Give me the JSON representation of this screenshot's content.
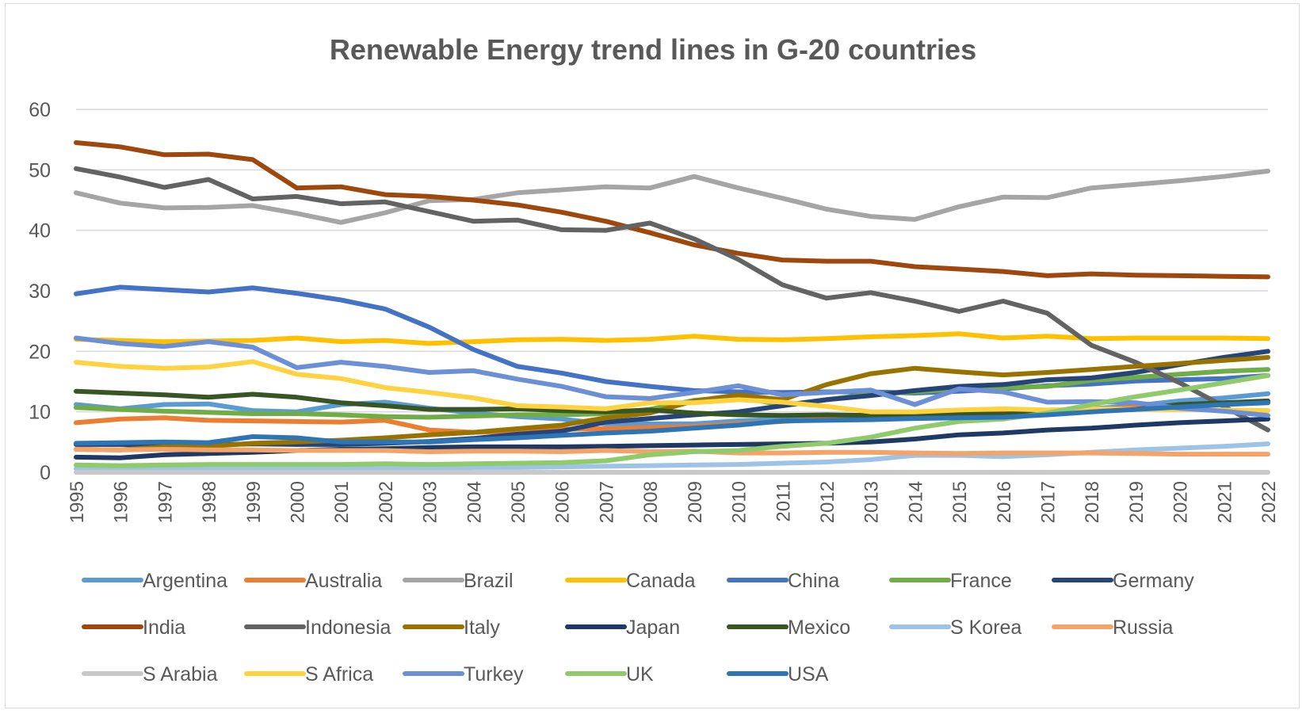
{
  "chart_data": {
    "type": "line",
    "title": "Renewable Energy trend lines in G-20 countries",
    "xlabel": "",
    "ylabel": "",
    "ylim": [
      0,
      60
    ],
    "yticks": [
      0,
      10,
      20,
      30,
      40,
      50,
      60
    ],
    "grid": true,
    "legend_position": "bottom",
    "categories": [
      "1995",
      "1996",
      "1997",
      "1998",
      "1999",
      "2000",
      "2001",
      "2002",
      "2003",
      "2004",
      "2005",
      "2006",
      "2007",
      "2008",
      "2009",
      "2010",
      "2011",
      "2012",
      "2013",
      "2014",
      "2015",
      "2016",
      "2017",
      "2018",
      "2019",
      "2020",
      "2021",
      "2022"
    ],
    "series": [
      {
        "name": "Argentina",
        "color": "#5B9BD5",
        "values": [
          11.2,
          10.5,
          11.2,
          11.3,
          10.2,
          10.0,
          11.2,
          11.6,
          10.6,
          9.8,
          9.2,
          8.8,
          8.0,
          8.0,
          8.0,
          8.5,
          8.8,
          9.2,
          9.5,
          9.5,
          9.8,
          10.0,
          10.2,
          10.5,
          11.0,
          11.8,
          12.3,
          13.0
        ]
      },
      {
        "name": "Australia",
        "color": "#ED7D31",
        "values": [
          8.2,
          8.8,
          9.0,
          8.6,
          8.5,
          8.4,
          8.3,
          8.6,
          7.0,
          6.6,
          6.8,
          7.1,
          7.2,
          7.4,
          7.6,
          8.0,
          8.4,
          8.8,
          9.0,
          9.2,
          9.5,
          9.8,
          10.0,
          10.3,
          10.8,
          11.0,
          11.2,
          11.6
        ]
      },
      {
        "name": "Brazil",
        "color": "#A5A5A5",
        "values": [
          46.2,
          44.5,
          43.7,
          43.8,
          44.1,
          42.8,
          41.3,
          42.9,
          44.9,
          45.1,
          46.2,
          46.7,
          47.2,
          47.0,
          48.9,
          47.0,
          45.3,
          43.5,
          42.3,
          41.8,
          43.9,
          45.5,
          45.4,
          47.0,
          47.6,
          48.2,
          48.9,
          49.8
        ]
      },
      {
        "name": "Canada",
        "color": "#FFC000",
        "values": [
          22.0,
          21.8,
          21.6,
          21.7,
          21.8,
          22.2,
          21.6,
          21.8,
          21.3,
          21.6,
          21.9,
          22.0,
          21.8,
          22.0,
          22.5,
          22.0,
          21.9,
          22.1,
          22.4,
          22.6,
          22.9,
          22.2,
          22.5,
          22.1,
          22.2,
          22.2,
          22.2,
          22.1
        ]
      },
      {
        "name": "China",
        "color": "#4472C4",
        "values": [
          29.5,
          30.6,
          30.2,
          29.8,
          30.5,
          29.6,
          28.5,
          27.0,
          24.0,
          20.3,
          17.5,
          16.4,
          15.0,
          14.2,
          13.5,
          13.3,
          13.2,
          13.3,
          13.3,
          13.1,
          13.4,
          13.8,
          14.3,
          14.6,
          15.1,
          15.3,
          15.5,
          16.0
        ]
      },
      {
        "name": "France",
        "color": "#70AD47",
        "values": [
          10.7,
          10.4,
          10.1,
          9.9,
          9.7,
          9.7,
          9.5,
          9.2,
          9.1,
          9.3,
          9.5,
          9.5,
          9.7,
          10.4,
          11.9,
          12.5,
          11.1,
          12.0,
          12.9,
          13.3,
          13.8,
          14.0,
          14.2,
          15.2,
          15.7,
          16.2,
          16.7,
          17.0
        ]
      },
      {
        "name": "Germany",
        "color": "#264478",
        "values": [
          4.6,
          4.6,
          4.5,
          4.5,
          4.7,
          4.6,
          4.6,
          4.8,
          5.1,
          5.6,
          6.3,
          6.8,
          8.3,
          8.9,
          9.5,
          10.0,
          11.0,
          12.0,
          12.7,
          13.5,
          14.2,
          14.5,
          15.3,
          15.6,
          16.5,
          17.8,
          19.0,
          20.0
        ]
      },
      {
        "name": "India",
        "color": "#9E480E",
        "values": [
          54.5,
          53.8,
          52.5,
          52.6,
          51.7,
          47.0,
          47.2,
          45.9,
          45.6,
          45.0,
          44.2,
          43.0,
          41.5,
          39.6,
          37.6,
          36.2,
          35.1,
          34.9,
          34.9,
          34.0,
          33.6,
          33.2,
          32.5,
          32.8,
          32.6,
          32.5,
          32.4,
          32.3
        ]
      },
      {
        "name": "Indonesia",
        "color": "#636363",
        "values": [
          50.2,
          48.8,
          47.1,
          48.4,
          45.2,
          45.6,
          44.4,
          44.7,
          43.1,
          41.5,
          41.7,
          40.1,
          40.0,
          41.2,
          38.6,
          35.2,
          31.0,
          28.8,
          29.7,
          28.3,
          26.6,
          28.3,
          26.3,
          21.0,
          18.2,
          14.8,
          10.9,
          7.0
        ]
      },
      {
        "name": "Italy",
        "color": "#997300",
        "values": [
          3.8,
          3.7,
          4.2,
          4.3,
          4.8,
          5.0,
          5.3,
          5.7,
          6.2,
          6.6,
          7.2,
          7.8,
          9.0,
          9.8,
          11.8,
          12.8,
          12.0,
          14.5,
          16.3,
          17.2,
          16.6,
          16.1,
          16.5,
          17.0,
          17.5,
          18.0,
          18.5,
          19.0
        ]
      },
      {
        "name": "Japan",
        "color": "#1F3864",
        "values": [
          2.5,
          2.4,
          2.9,
          3.1,
          3.3,
          3.6,
          3.8,
          3.9,
          4.1,
          4.2,
          4.2,
          4.2,
          4.3,
          4.4,
          4.5,
          4.6,
          4.7,
          4.8,
          5.0,
          5.5,
          6.2,
          6.5,
          7.0,
          7.3,
          7.8,
          8.2,
          8.5,
          8.8
        ]
      },
      {
        "name": "Mexico",
        "color": "#375623",
        "values": [
          13.4,
          13.1,
          12.8,
          12.4,
          12.9,
          12.4,
          11.5,
          11.0,
          10.4,
          10.4,
          10.5,
          10.2,
          10.0,
          10.3,
          9.8,
          9.5,
          9.4,
          9.5,
          9.4,
          9.6,
          9.6,
          9.6,
          9.9,
          10.2,
          10.4,
          11.2,
          11.5,
          11.8
        ]
      },
      {
        "name": "S Korea",
        "color": "#9DC3E6",
        "values": [
          0.6,
          0.6,
          0.6,
          0.6,
          0.6,
          0.6,
          0.6,
          0.7,
          0.7,
          0.8,
          0.8,
          0.9,
          1.0,
          1.1,
          1.2,
          1.3,
          1.5,
          1.7,
          2.1,
          2.8,
          2.8,
          2.6,
          2.9,
          3.3,
          3.7,
          4.0,
          4.3,
          4.7
        ]
      },
      {
        "name": "Russia",
        "color": "#F4A468",
        "values": [
          3.8,
          3.7,
          3.8,
          3.7,
          3.7,
          3.6,
          3.6,
          3.6,
          3.4,
          3.5,
          3.5,
          3.4,
          3.6,
          3.4,
          3.5,
          3.2,
          3.2,
          3.3,
          3.3,
          3.2,
          3.1,
          3.2,
          3.2,
          3.2,
          3.1,
          3.0,
          3.0,
          3.0
        ]
      },
      {
        "name": "S Arabia",
        "color": "#C9C9C9",
        "values": [
          0,
          0,
          0,
          0,
          0,
          0,
          0,
          0,
          0,
          0,
          0,
          0,
          0,
          0,
          0,
          0,
          0,
          0,
          0,
          0,
          0,
          0,
          0,
          0,
          0,
          0,
          0,
          0
        ]
      },
      {
        "name": "S Africa",
        "color": "#FFD23F",
        "values": [
          18.2,
          17.5,
          17.2,
          17.4,
          18.3,
          16.2,
          15.5,
          14.0,
          13.2,
          12.3,
          11.0,
          10.8,
          10.5,
          11.5,
          11.5,
          12.0,
          11.6,
          10.9,
          10.0,
          10.0,
          10.3,
          10.5,
          10.3,
          10.5,
          10.4,
          10.4,
          10.3,
          10.2
        ]
      },
      {
        "name": "Turkey",
        "color": "#6D8FD6",
        "values": [
          22.2,
          21.3,
          20.8,
          21.6,
          20.7,
          17.3,
          18.2,
          17.5,
          16.5,
          16.8,
          15.4,
          14.2,
          12.5,
          12.2,
          13.2,
          14.3,
          12.8,
          13.2,
          13.6,
          11.2,
          13.8,
          13.3,
          11.6,
          11.7,
          11.5,
          10.6,
          10.1,
          9.4
        ]
      },
      {
        "name": "UK",
        "color": "#8FCB6B",
        "values": [
          1.2,
          1.1,
          1.2,
          1.3,
          1.3,
          1.3,
          1.3,
          1.4,
          1.3,
          1.4,
          1.5,
          1.6,
          1.9,
          2.9,
          3.4,
          3.6,
          4.3,
          4.8,
          5.8,
          7.3,
          8.4,
          8.8,
          9.8,
          11.2,
          12.5,
          13.6,
          14.8,
          16.0
        ]
      },
      {
        "name": "USA",
        "color": "#2E75B6",
        "values": [
          4.8,
          4.9,
          5.0,
          4.9,
          5.9,
          5.7,
          5.0,
          5.0,
          5.0,
          5.4,
          5.7,
          6.1,
          6.5,
          6.8,
          7.3,
          7.8,
          8.5,
          8.6,
          8.7,
          8.9,
          9.0,
          9.1,
          9.5,
          10.0,
          10.4,
          10.8,
          11.2,
          11.5
        ]
      }
    ]
  }
}
